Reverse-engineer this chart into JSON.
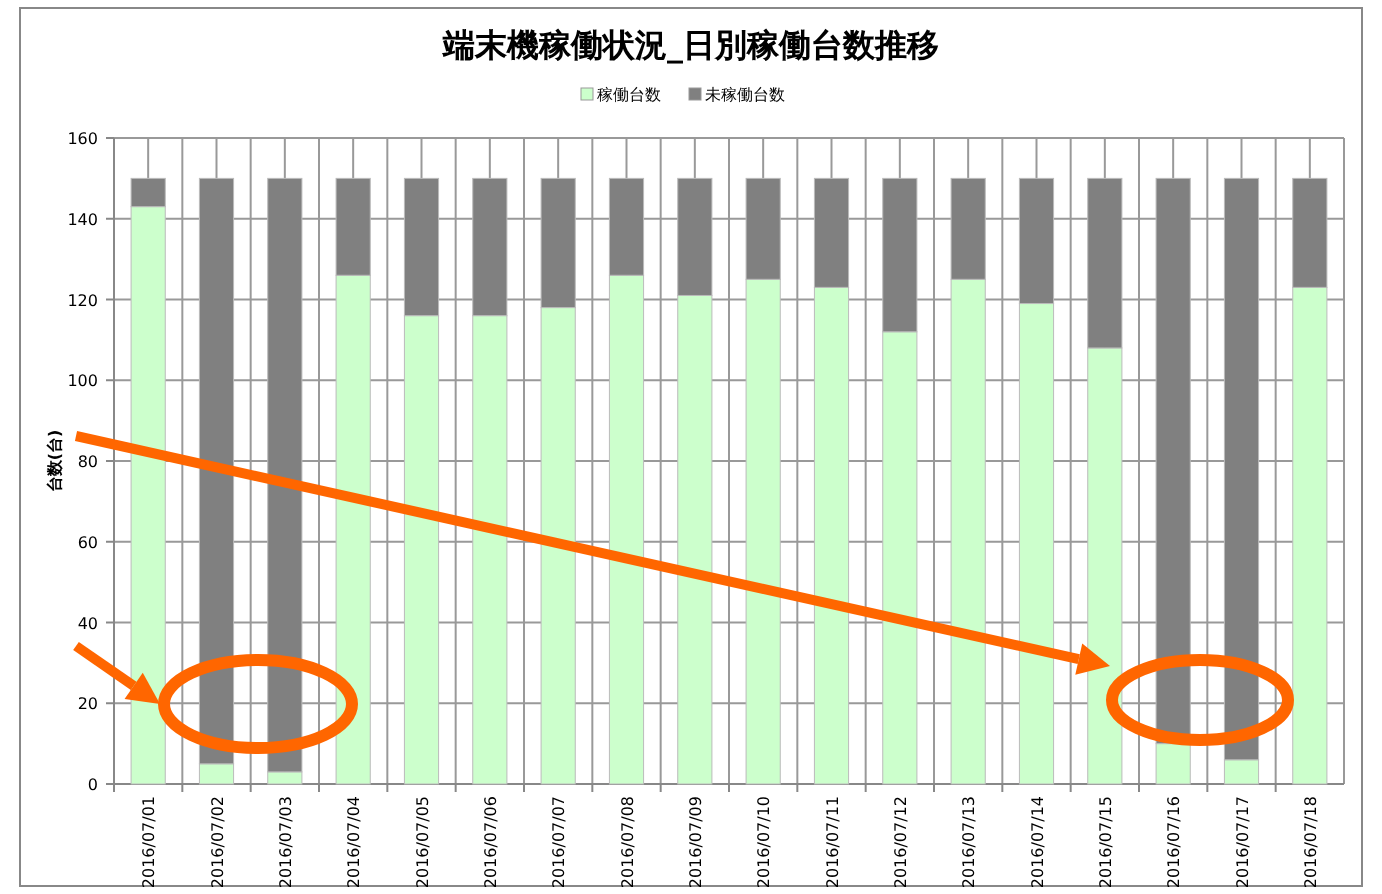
{
  "chart_data": {
    "type": "bar",
    "title": "端末機稼働状況_日別稼働台数推移",
    "ylabel": "台数(台)",
    "categories": [
      "2016/07/01",
      "2016/07/02",
      "2016/07/03",
      "2016/07/04",
      "2016/07/05",
      "2016/07/06",
      "2016/07/07",
      "2016/07/08",
      "2016/07/09",
      "2016/07/10",
      "2016/07/11",
      "2016/07/12",
      "2016/07/13",
      "2016/07/14",
      "2016/07/15",
      "2016/07/16",
      "2016/07/17",
      "2016/07/18"
    ],
    "series": [
      {
        "name": "稼働台数",
        "color": "#ccffcc",
        "values": [
          143,
          5,
          3,
          126,
          116,
          116,
          118,
          126,
          121,
          125,
          123,
          112,
          125,
          119,
          108,
          10,
          6,
          123
        ]
      },
      {
        "name": "未稼働台数",
        "color": "#808080",
        "values": [
          7,
          145,
          147,
          24,
          34,
          34,
          32,
          24,
          29,
          25,
          27,
          38,
          25,
          31,
          42,
          140,
          144,
          27
        ]
      }
    ],
    "stacked": true,
    "ylim": [
      0,
      160
    ],
    "yticks": [
      0,
      20,
      40,
      60,
      80,
      100,
      120,
      140,
      160
    ],
    "grid": true,
    "legend": "top"
  }
}
